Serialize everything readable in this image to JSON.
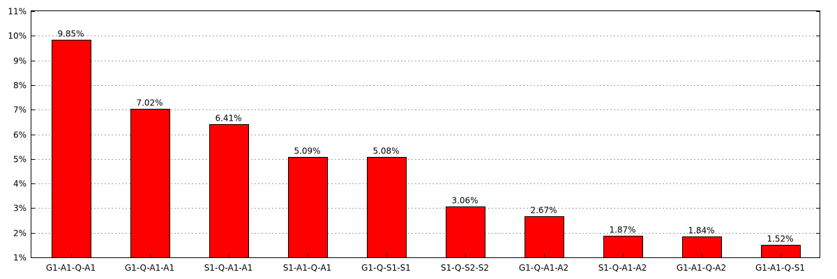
{
  "chart_data": {
    "type": "bar",
    "title": "",
    "xlabel": "",
    "ylabel": "",
    "categories": [
      "G1-A1-Q-A1",
      "G1-Q-A1-A1",
      "S1-Q-A1-A1",
      "S1-A1-Q-A1",
      "G1-Q-S1-S1",
      "S1-Q-S2-S2",
      "G1-Q-A1-A2",
      "S1-Q-A1-A2",
      "G1-A1-Q-A2",
      "G1-A1-Q-S1"
    ],
    "values": [
      9.85,
      7.02,
      6.41,
      5.09,
      5.08,
      3.06,
      2.67,
      1.87,
      1.84,
      1.52
    ],
    "data_labels": [
      "9.85%",
      "7.02%",
      "6.41%",
      "5.09%",
      "5.08%",
      "3.06%",
      "2.67%",
      "1.87%",
      "1.84%",
      "1.52%"
    ],
    "ylim": [
      1,
      11
    ],
    "yticks": [
      1,
      2,
      3,
      4,
      5,
      6,
      7,
      8,
      9,
      10,
      11
    ],
    "ytick_labels": [
      "1%",
      "2%",
      "3%",
      "4%",
      "5%",
      "6%",
      "7%",
      "8%",
      "9%",
      "10%",
      "11%"
    ],
    "grid": true,
    "bar_color": "#ff0000",
    "bar_edge_color": "#000000",
    "grid_color": "#a0a0a0"
  }
}
